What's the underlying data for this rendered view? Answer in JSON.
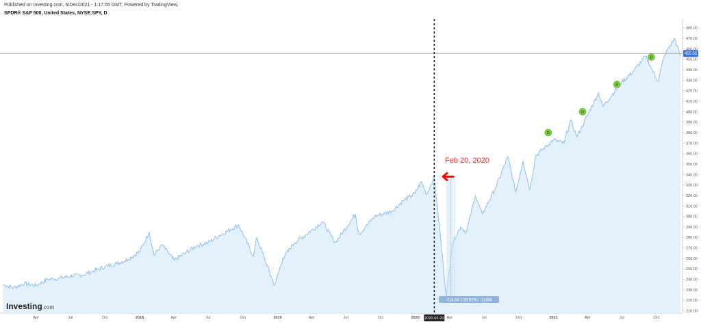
{
  "header": {
    "published": "Published on Investing.com, 6/Dec/2021 - 1:17:55 GMT, Powered by TradingView.",
    "symbol": "SPDR® S&P 500, United States, NYSE:SPY, D"
  },
  "logo": {
    "name": "Investing",
    "suffix": ".com"
  },
  "annotation": {
    "label": "Feb 20, 2020",
    "arrow_color": "#ff0000",
    "label_color": "#ff2222"
  },
  "measure": {
    "label": "-114.54 (-33.92%) -11454"
  },
  "colors": {
    "line": "#8ebfea",
    "fill": "#e4f1fb",
    "price_badge": "#3d73d6",
    "dividend": "#7dd13c",
    "marker_badge": "#222222"
  },
  "chart_data": {
    "type": "area",
    "title": "",
    "xlabel": "",
    "ylabel": "",
    "ylim": [
      205,
      485
    ],
    "grid": false,
    "current_price": {
      "label": "455.55",
      "value": 455.55
    },
    "marker": {
      "label": "2020-02-20",
      "date": "2020-02-20",
      "value": 338
    },
    "x_ticks": [
      "Apr",
      "Jul",
      "Oct",
      "2018",
      "Apr",
      "Jul",
      "Oct",
      "2019",
      "Apr",
      "Jul",
      "Oct",
      "2020",
      "2020-02-20",
      "Apr",
      "Jul",
      "Oct",
      "2021",
      "Apr",
      "Jul",
      "Oct"
    ],
    "y_ticks": [
      "480.00",
      "470.00",
      "460.00",
      "450.00",
      "440.00",
      "430.00",
      "420.00",
      "410.00",
      "400.00",
      "390.00",
      "380.00",
      "370.00",
      "360.00",
      "350.00",
      "340.00",
      "330.00",
      "320.00",
      "310.00",
      "300.00",
      "290.00",
      "280.00",
      "270.00",
      "260.00",
      "250.00",
      "240.00",
      "230.00",
      "220.00",
      "210.00"
    ],
    "series": [
      {
        "values": [
          [
            "2017-01-03",
            235
          ],
          [
            "2017-02-01",
            232
          ],
          [
            "2017-03-01",
            236
          ],
          [
            "2017-04-01",
            234
          ],
          [
            "2017-05-01",
            240
          ],
          [
            "2017-06-01",
            241
          ],
          [
            "2017-07-01",
            243
          ],
          [
            "2017-08-01",
            244
          ],
          [
            "2017-09-01",
            248
          ],
          [
            "2017-10-01",
            252
          ],
          [
            "2017-11-01",
            255
          ],
          [
            "2017-12-01",
            259
          ],
          [
            "2018-01-02",
            267
          ],
          [
            "2018-01-26",
            285
          ],
          [
            "2018-02-08",
            263
          ],
          [
            "2018-03-01",
            273
          ],
          [
            "2018-04-02",
            258
          ],
          [
            "2018-05-01",
            265
          ],
          [
            "2018-06-01",
            272
          ],
          [
            "2018-07-01",
            275
          ],
          [
            "2018-08-01",
            282
          ],
          [
            "2018-09-20",
            292
          ],
          [
            "2018-10-29",
            262
          ],
          [
            "2018-11-07",
            280
          ],
          [
            "2018-12-24",
            234
          ],
          [
            "2019-01-15",
            260
          ],
          [
            "2019-02-15",
            275
          ],
          [
            "2019-03-15",
            282
          ],
          [
            "2019-04-30",
            295
          ],
          [
            "2019-06-03",
            275
          ],
          [
            "2019-07-26",
            302
          ],
          [
            "2019-08-05",
            283
          ],
          [
            "2019-09-15",
            300
          ],
          [
            "2019-10-30",
            305
          ],
          [
            "2019-11-30",
            315
          ],
          [
            "2019-12-31",
            322
          ],
          [
            "2020-01-17",
            333
          ],
          [
            "2020-01-31",
            321
          ],
          [
            "2020-02-20",
            338
          ],
          [
            "2020-03-09",
            275
          ],
          [
            "2020-03-23",
            223
          ],
          [
            "2020-04-08",
            275
          ],
          [
            "2020-04-30",
            290
          ],
          [
            "2020-05-15",
            285
          ],
          [
            "2020-06-08",
            320
          ],
          [
            "2020-06-26",
            302
          ],
          [
            "2020-07-31",
            327
          ],
          [
            "2020-09-02",
            357
          ],
          [
            "2020-09-23",
            323
          ],
          [
            "2020-10-12",
            353
          ],
          [
            "2020-10-30",
            326
          ],
          [
            "2020-11-15",
            358
          ],
          [
            "2020-12-31",
            373
          ],
          [
            "2021-01-29",
            370
          ],
          [
            "2021-02-15",
            392
          ],
          [
            "2021-03-04",
            376
          ],
          [
            "2021-03-31",
            396
          ],
          [
            "2021-04-30",
            418
          ],
          [
            "2021-05-12",
            405
          ],
          [
            "2021-06-30",
            428
          ],
          [
            "2021-07-30",
            438
          ],
          [
            "2021-09-02",
            453
          ],
          [
            "2021-09-14",
            444
          ],
          [
            "2021-10-04",
            429
          ],
          [
            "2021-10-22",
            454
          ],
          [
            "2021-11-18",
            470
          ],
          [
            "2021-12-03",
            453
          ]
        ]
      }
    ],
    "dividends": [
      {
        "label": "D",
        "date": "2020-12-18",
        "value": 380
      },
      {
        "label": "D",
        "date": "2021-03-19",
        "value": 400
      },
      {
        "label": "D",
        "date": "2021-06-18",
        "value": 426
      },
      {
        "label": "D",
        "date": "2021-09-17",
        "value": 452
      }
    ],
    "measure_range": {
      "start": "2020-03-23",
      "end": "2020-04-15",
      "high": 338,
      "low": 223
    }
  }
}
